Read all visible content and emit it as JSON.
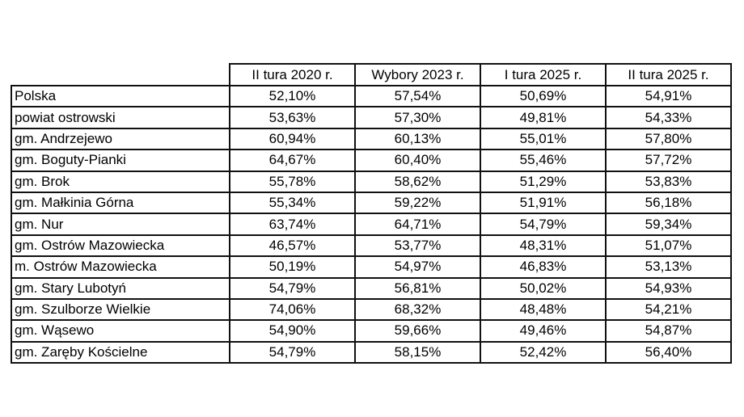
{
  "colors": {
    "background": "#ffffff",
    "border": "#111111",
    "text": "#000000"
  },
  "chart_data": {
    "type": "table",
    "title": "",
    "columns": [
      "II tura 2020 r.",
      "Wybory 2023 r.",
      "I tura 2025 r.",
      "II tura 2025 r."
    ],
    "row_label_header": "",
    "value_unit": "%",
    "decimal_separator": ",",
    "rows": [
      {
        "label": "Polska",
        "values": [
          "52,10%",
          "57,54%",
          "50,69%",
          "54,91%"
        ]
      },
      {
        "label": "powiat ostrowski",
        "values": [
          "53,63%",
          "57,30%",
          "49,81%",
          "54,33%"
        ]
      },
      {
        "label": "gm. Andrzejewo",
        "values": [
          "60,94%",
          "60,13%",
          "55,01%",
          "57,80%"
        ]
      },
      {
        "label": "gm. Boguty-Pianki",
        "values": [
          "64,67%",
          "60,40%",
          "55,46%",
          "57,72%"
        ]
      },
      {
        "label": "gm. Brok",
        "values": [
          "55,78%",
          "58,62%",
          "51,29%",
          "53,83%"
        ]
      },
      {
        "label": "gm. Małkinia Górna",
        "values": [
          "55,34%",
          "59,22%",
          "51,91%",
          "56,18%"
        ]
      },
      {
        "label": "gm. Nur",
        "values": [
          "63,74%",
          "64,71%",
          "54,79%",
          "59,34%"
        ]
      },
      {
        "label": "gm. Ostrów Mazowiecka",
        "values": [
          "46,57%",
          "53,77%",
          "48,31%",
          "51,07%"
        ]
      },
      {
        "label": "m. Ostrów Mazowiecka",
        "values": [
          "50,19%",
          "54,97%",
          "46,83%",
          "53,13%"
        ]
      },
      {
        "label": "gm. Stary Lubotyń",
        "values": [
          "54,79%",
          "56,81%",
          "50,02%",
          "54,93%"
        ]
      },
      {
        "label": "gm. Szulborze Wielkie",
        "values": [
          "74,06%",
          "68,32%",
          "48,48%",
          "54,21%"
        ]
      },
      {
        "label": "gm. Wąsewo",
        "values": [
          "54,90%",
          "59,66%",
          "49,46%",
          "54,87%"
        ]
      },
      {
        "label": "gm. Zaręby Kościelne",
        "values": [
          "54,79%",
          "58,15%",
          "52,42%",
          "56,40%"
        ]
      }
    ]
  }
}
